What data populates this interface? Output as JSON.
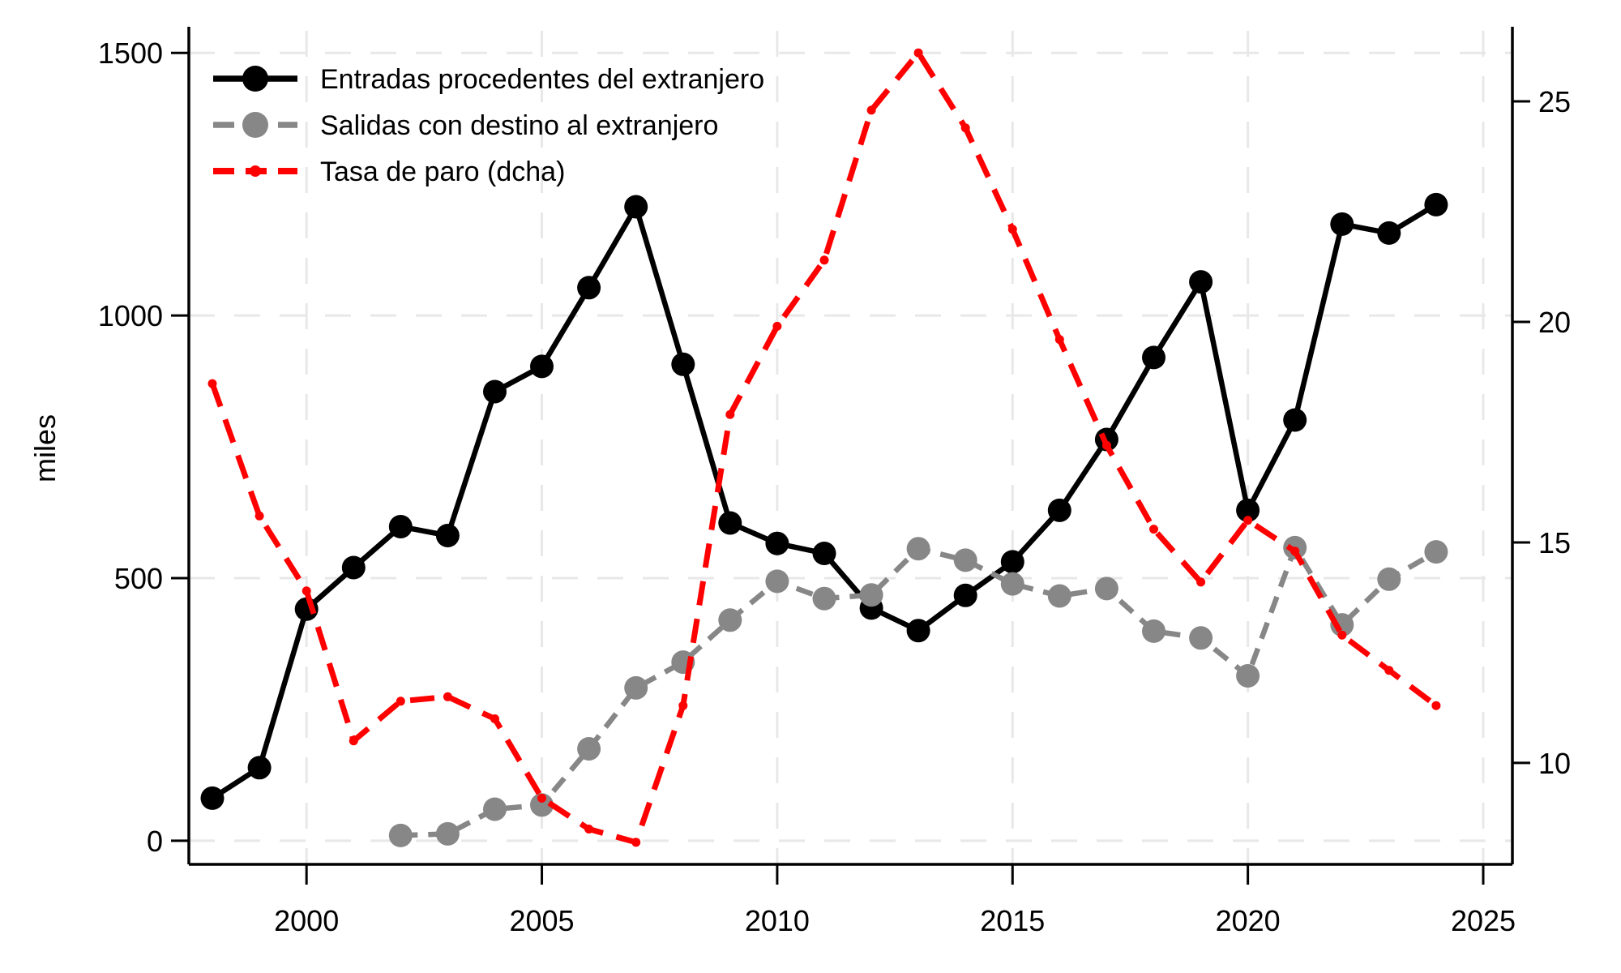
{
  "background_color": "#ffffff",
  "chart_data": {
    "type": "line",
    "title": "",
    "xlabel": "",
    "ylabel_left": "miles",
    "grid": true,
    "grid_color": "#e8e8e8",
    "axis_color": "#000000",
    "legend_position": "top-left",
    "x": [
      1998,
      1999,
      2000,
      2001,
      2002,
      2003,
      2004,
      2005,
      2006,
      2007,
      2008,
      2009,
      2010,
      2011,
      2012,
      2013,
      2014,
      2015,
      2016,
      2017,
      2018,
      2019,
      2020,
      2021,
      2022,
      2023,
      2024
    ],
    "x_axis": {
      "ticks": [
        2000,
        2005,
        2010,
        2015,
        2020,
        2025
      ],
      "range": [
        1997.5,
        2025.62
      ]
    },
    "left_axis": {
      "label": "miles",
      "ticks": [
        0,
        500,
        1000,
        1500
      ],
      "range": [
        -45,
        1542
      ]
    },
    "right_axis": {
      "ticks": [
        10,
        15,
        20,
        25
      ],
      "range": [
        7.7,
        26.6
      ]
    },
    "series": [
      {
        "name": "Entradas procedentes del extranjero",
        "slug": "entradas-procedentes-del-extranjero",
        "axis": "left",
        "color": "#000000",
        "line_style": "solid",
        "line_width": 6.5,
        "marker": "circle",
        "marker_size": 14.5,
        "values": [
          81,
          139,
          441,
          520,
          598,
          581,
          855,
          903,
          1053,
          1207,
          907,
          605,
          566,
          547,
          443,
          400,
          467,
          531,
          629,
          764,
          920,
          1064,
          629,
          801,
          1174,
          1157,
          1211
        ]
      },
      {
        "name": "Salidas con destino al extranjero",
        "slug": "salidas-con-destino-al-extranjero",
        "axis": "left",
        "color": "#878787",
        "line_style": "dash",
        "line_width": 6.5,
        "marker": "circle",
        "marker_size": 14.5,
        "values": [
          null,
          null,
          null,
          null,
          10,
          13,
          60,
          68,
          175,
          291,
          340,
          420,
          494,
          461,
          468,
          556,
          534,
          489,
          466,
          480,
          399,
          386,
          314,
          558,
          411,
          498,
          550
        ]
      },
      {
        "name": "Tasa de paro (dcha)",
        "slug": "tasa-de-paro-dcha",
        "axis": "right",
        "color": "#ff0000",
        "line_style": "dash",
        "line_width": 7,
        "marker": "dot",
        "marker_size": 5.5,
        "values": [
          18.6,
          15.6,
          13.9,
          10.5,
          11.4,
          11.5,
          11.0,
          9.2,
          8.5,
          8.2,
          11.3,
          17.9,
          19.9,
          21.4,
          24.8,
          26.1,
          24.4,
          22.1,
          19.6,
          17.2,
          15.3,
          14.1,
          15.5,
          14.8,
          12.9,
          12.1,
          11.3
        ]
      }
    ]
  }
}
